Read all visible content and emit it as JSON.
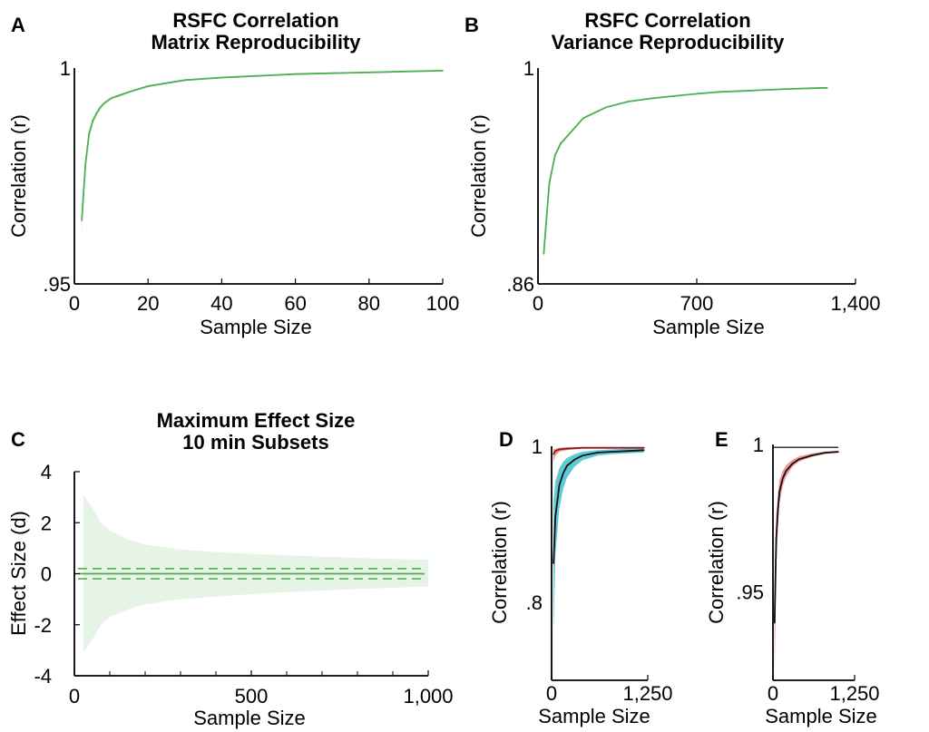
{
  "colors": {
    "green_line": "#4caf50",
    "green_band": "#e6f4e6",
    "green_dash": "#5cb85c",
    "black_line": "#111111",
    "teal_band": "#4cc5cf",
    "red_line": "#8b1a1a",
    "red_band": "#f08a8a"
  },
  "chart_data": [
    {
      "id": "A",
      "letter": "A",
      "type": "line",
      "title_lines": [
        "RSFC Correlation",
        "Matrix Reproducibility"
      ],
      "xlabel": "Sample Size",
      "ylabel": "Correlation (r)",
      "xlim": [
        0,
        100
      ],
      "ylim": [
        0.95,
        1
      ],
      "xticks": [
        0,
        20,
        40,
        60,
        80,
        100
      ],
      "xtick_labels": [
        "0",
        "20",
        "40",
        "60",
        "80",
        "100"
      ],
      "yticks": [
        0.95,
        1
      ],
      "ytick_labels": [
        ".95",
        "1"
      ],
      "series": [
        {
          "x": [
            2,
            3,
            4,
            5,
            6,
            7,
            8,
            10,
            15,
            20,
            30,
            40,
            50,
            60,
            70,
            80,
            90,
            100
          ],
          "y": [
            0.9647,
            0.9778,
            0.9848,
            0.9878,
            0.9895,
            0.9908,
            0.9918,
            0.993,
            0.9945,
            0.9958,
            0.9972,
            0.9978,
            0.9982,
            0.9986,
            0.9988,
            0.999,
            0.9992,
            0.9994
          ],
          "band_low": [
            0.9608,
            0.9756,
            0.9835,
            0.9868,
            0.9887,
            0.9901,
            0.9912,
            0.9926,
            0.9942,
            0.9955,
            0.997,
            0.9976,
            0.998,
            0.9984,
            0.9987,
            0.9989,
            0.9991,
            0.9993
          ],
          "band_high": [
            0.9675,
            0.9795,
            0.9858,
            0.9886,
            0.9902,
            0.9914,
            0.9923,
            0.9934,
            0.9948,
            0.9961,
            0.9974,
            0.998,
            0.9984,
            0.9988,
            0.999,
            0.9991,
            0.9993,
            0.9995
          ]
        }
      ]
    },
    {
      "id": "B",
      "letter": "B",
      "type": "line",
      "title_lines": [
        "RSFC Correlation",
        "Variance Reproducibility"
      ],
      "xlabel": "Sample Size",
      "ylabel": "Correlation (r)",
      "xlim": [
        0,
        1400
      ],
      "ylim": [
        0.86,
        1
      ],
      "xticks": [
        0,
        700,
        1400
      ],
      "xtick_labels": [
        "0",
        "700",
        "1,400"
      ],
      "yticks": [
        0.86,
        1
      ],
      "ytick_labels": [
        ".86",
        "1"
      ],
      "series": [
        {
          "x": [
            25,
            50,
            75,
            100,
            200,
            300,
            400,
            500,
            600,
            700,
            800,
            900,
            1000,
            1100,
            1200,
            1275
          ],
          "y": [
            0.8795,
            0.9255,
            0.9435,
            0.951,
            0.9675,
            0.9745,
            0.9783,
            0.9803,
            0.9818,
            0.9833,
            0.9845,
            0.9851,
            0.9858,
            0.9864,
            0.9869,
            0.9872
          ],
          "band_low": [
            0.8725,
            0.922,
            0.9415,
            0.9497,
            0.9668,
            0.974,
            0.978,
            0.98,
            0.9816,
            0.9831,
            0.9843,
            0.985,
            0.9857,
            0.9863,
            0.9868,
            0.9871
          ],
          "band_high": [
            0.8845,
            0.928,
            0.945,
            0.9522,
            0.9682,
            0.975,
            0.9786,
            0.9806,
            0.982,
            0.9835,
            0.9847,
            0.9852,
            0.9859,
            0.9865,
            0.987,
            0.9873
          ]
        }
      ]
    },
    {
      "id": "C",
      "letter": "C",
      "type": "area",
      "title_lines": [
        "Maximum Effect Size",
        "10 min Subsets"
      ],
      "xlabel": "Sample Size",
      "ylabel": "Effect Size (d)",
      "xlim": [
        0,
        1000
      ],
      "ylim": [
        -4,
        4
      ],
      "xticks": [
        0,
        500,
        1000
      ],
      "xtick_labels": [
        "0",
        "500",
        "1,000"
      ],
      "yticks": [
        -4,
        -2,
        0,
        2,
        4
      ],
      "ytick_labels": [
        "-4",
        "-2",
        "0",
        "2",
        "4"
      ],
      "band": {
        "x": [
          25,
          50,
          75,
          100,
          150,
          200,
          300,
          400,
          500,
          600,
          700,
          800,
          900,
          1000
        ],
        "high": [
          3.1,
          2.6,
          2.0,
          1.7,
          1.35,
          1.15,
          0.95,
          0.85,
          0.78,
          0.72,
          0.67,
          0.62,
          0.58,
          0.55
        ],
        "low": [
          -3.1,
          -2.6,
          -2.0,
          -1.7,
          -1.4,
          -1.2,
          -1.0,
          -0.9,
          -0.8,
          -0.72,
          -0.66,
          -0.6,
          -0.55,
          -0.5
        ]
      },
      "mean_line": 0,
      "dashed_lines": [
        0.2,
        -0.2
      ]
    },
    {
      "id": "D",
      "letter": "D",
      "type": "line",
      "xlabel": "Sample Size",
      "ylabel": "Correlation (r)",
      "xlim": [
        0,
        1250
      ],
      "ylim": [
        0.7,
        1
      ],
      "xticks": [
        0,
        1250
      ],
      "xtick_labels": [
        "0",
        "1,250"
      ],
      "yticks": [
        0.8,
        1
      ],
      "ytick_labels": [
        ".8",
        "1"
      ],
      "series": [
        {
          "color": "black_line",
          "x": [
            25,
            50,
            100,
            150,
            200,
            300,
            400,
            600,
            800,
            1000,
            1200
          ],
          "y": [
            0.85,
            0.91,
            0.95,
            0.965,
            0.975,
            0.983,
            0.988,
            0.992,
            0.993,
            0.994,
            0.995
          ],
          "band_color": "teal_band",
          "band_low": [
            0.76,
            0.86,
            0.92,
            0.945,
            0.96,
            0.974,
            0.982,
            0.988,
            0.99,
            0.991,
            0.992
          ],
          "band_high": [
            0.93,
            0.955,
            0.972,
            0.98,
            0.985,
            0.99,
            0.993,
            0.995,
            0.996,
            0.997,
            0.997
          ]
        },
        {
          "color": "red_line",
          "x": [
            25,
            50,
            100,
            200,
            400,
            600,
            800,
            1000,
            1200
          ],
          "y": [
            0.99,
            0.994,
            0.996,
            0.997,
            0.998,
            0.998,
            0.998,
            0.998,
            0.998
          ],
          "band_color": "red_band",
          "band_low": [
            0.98,
            0.988,
            0.993,
            0.995,
            0.997,
            0.997,
            0.997,
            0.997,
            0.997
          ],
          "band_high": [
            0.996,
            0.997,
            0.998,
            0.999,
            0.999,
            0.999,
            0.999,
            0.999,
            0.999
          ]
        }
      ]
    },
    {
      "id": "E",
      "letter": "E",
      "type": "line",
      "xlabel": "Sample Size",
      "ylabel": "Correlation (r)",
      "xlim": [
        0,
        1250
      ],
      "ylim": [
        0.92,
        1
      ],
      "xticks": [
        0,
        1250
      ],
      "xtick_labels": [
        "0",
        "1,250"
      ],
      "yticks": [
        0.95,
        1
      ],
      "ytick_labels": [
        ".95",
        "1"
      ],
      "series": [
        {
          "color": "black_line",
          "x": [
            25,
            50,
            75,
            100,
            150,
            200,
            300,
            400,
            600,
            800,
            1000
          ],
          "y": [
            0.9395,
            0.968,
            0.9775,
            0.984,
            0.9885,
            0.991,
            0.9935,
            0.995,
            0.9963,
            0.9972,
            0.9975
          ],
          "band_color": "red_band",
          "band_low": [
            0.921,
            0.958,
            0.971,
            0.98,
            0.986,
            0.989,
            0.9925,
            0.9942,
            0.9958,
            0.9968,
            0.9972
          ],
          "band_high": [
            0.955,
            0.976,
            0.983,
            0.988,
            0.991,
            0.993,
            0.9948,
            0.996,
            0.997,
            0.9976,
            0.9979
          ]
        }
      ],
      "reference_line": 0.999
    }
  ]
}
